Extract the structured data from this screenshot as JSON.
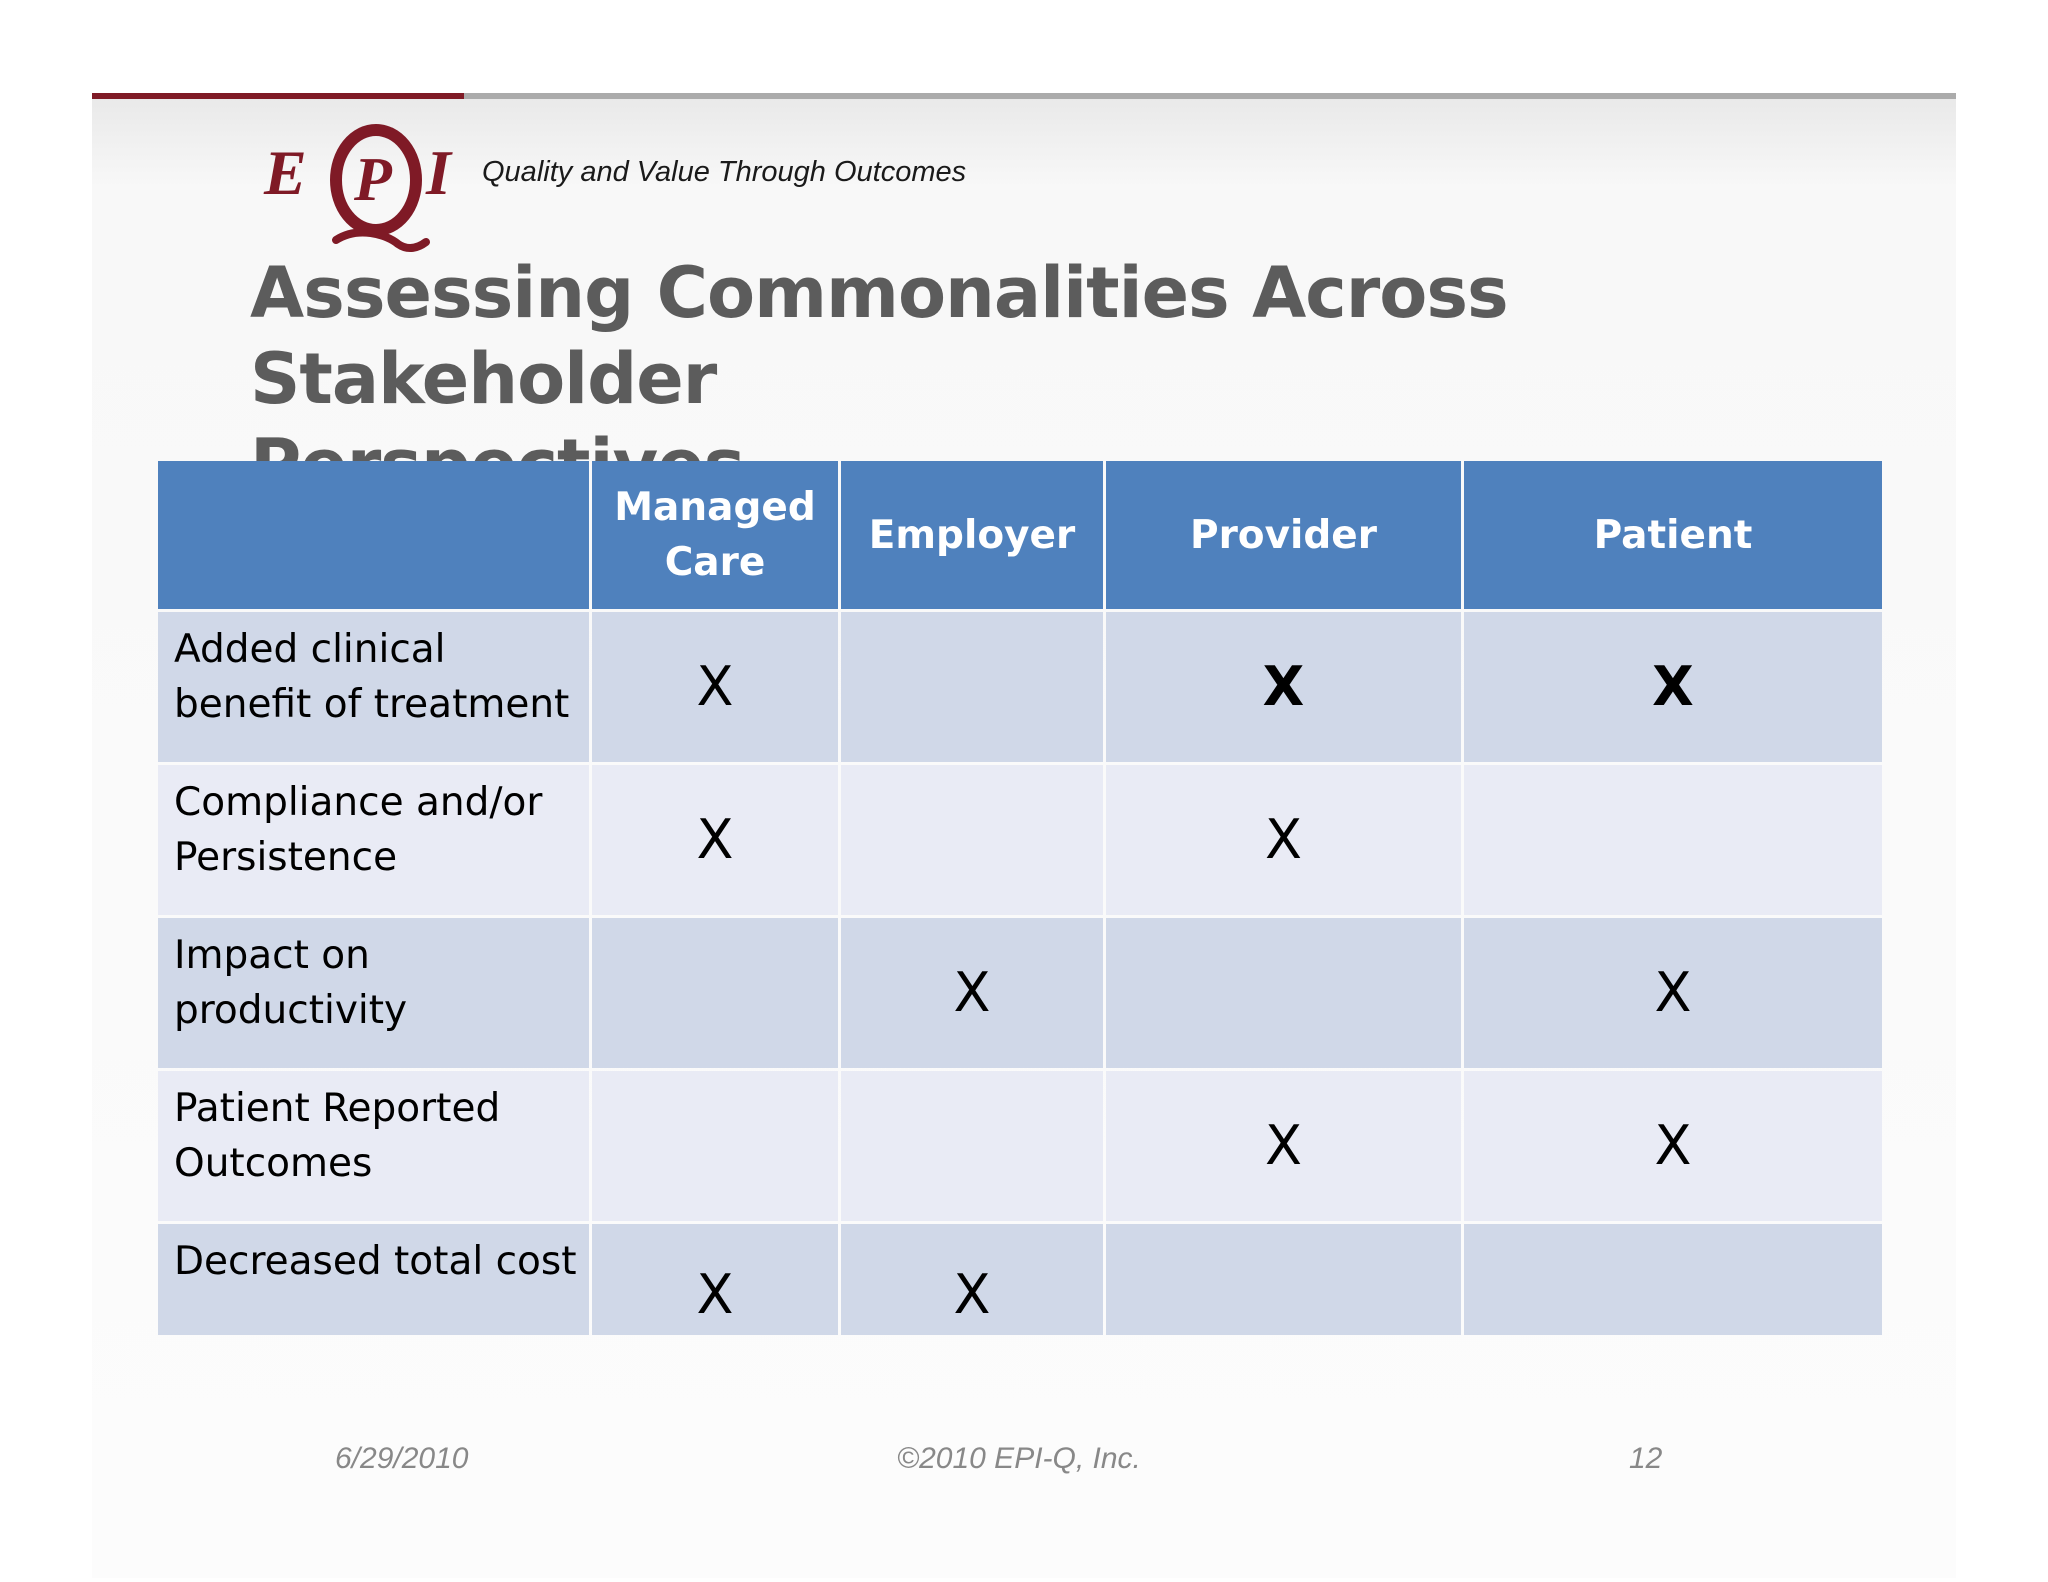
{
  "header": {
    "logo_text": "EPQI",
    "tagline": "Quality and Value Through Outcomes"
  },
  "slide": {
    "title_line1": "Assessing Commonalities Across Stakeholder",
    "title_line2": "Perspectives"
  },
  "table": {
    "columns": [
      "",
      "Managed Care",
      "Employer",
      "Provider",
      "Patient"
    ],
    "rows": [
      {
        "label": "Added clinical benefit of treatment",
        "cells": [
          "X",
          "",
          "X",
          "X"
        ],
        "bold": [
          false,
          false,
          true,
          true
        ]
      },
      {
        "label": "Compliance and/or Persistence",
        "cells": [
          "X",
          "",
          "X",
          ""
        ],
        "bold": [
          false,
          false,
          false,
          false
        ]
      },
      {
        "label": "Impact on productivity",
        "cells": [
          "",
          "X",
          "",
          "X"
        ],
        "bold": [
          false,
          false,
          false,
          false
        ]
      },
      {
        "label": "Patient Reported Outcomes",
        "cells": [
          "",
          "",
          "X",
          "X"
        ],
        "bold": [
          false,
          false,
          false,
          false
        ]
      },
      {
        "label": "Decreased total cost",
        "cells": [
          "X",
          "X",
          "",
          ""
        ],
        "bold": [
          false,
          false,
          false,
          false
        ]
      }
    ]
  },
  "footer": {
    "date": "6/29/2010",
    "copyright": "©2010 EPI-Q, Inc.",
    "page_number": "12"
  },
  "colors": {
    "accent_red": "#7f1a26",
    "header_blue": "#4f81bd",
    "row_odd": "#d0d8e8",
    "row_even": "#e9ebf5",
    "title_gray": "#5c5c5c"
  }
}
